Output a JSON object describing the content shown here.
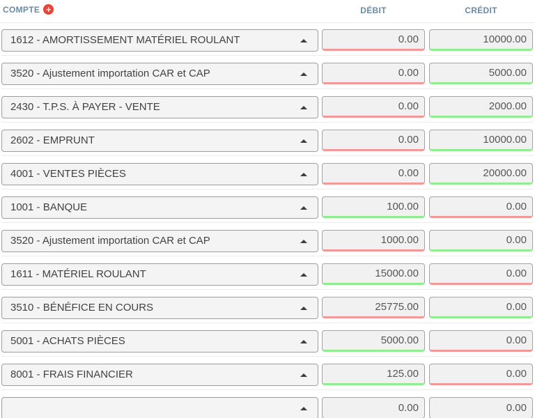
{
  "header": {
    "account_column": "COMPTE",
    "debit_column": "DÉBIT",
    "credit_column": "CRÉDIT",
    "add_icon_glyph": "+"
  },
  "icons": {
    "add_account": "plus-circle-icon",
    "dropdown": "chevron-up-icon"
  },
  "colors": {
    "header_text": "#6b8aa3",
    "add_icon_background": "#ea4335",
    "debit_underline_red": "#f19999",
    "credit_underline_green": "#90ee90"
  },
  "rows": [
    {
      "account": "1612 - AMORTISSEMENT MATÉRIEL ROULANT",
      "debit": "0.00",
      "credit": "10000.00",
      "debit_state": "red",
      "credit_state": "green"
    },
    {
      "account": "3520 - Ajustement importation CAR et CAP",
      "debit": "0.00",
      "credit": "5000.00",
      "debit_state": "red",
      "credit_state": "green"
    },
    {
      "account": "2430 - T.P.S. À PAYER - VENTE",
      "debit": "0.00",
      "credit": "2000.00",
      "debit_state": "red",
      "credit_state": "green"
    },
    {
      "account": "2602 - EMPRUNT",
      "debit": "0.00",
      "credit": "10000.00",
      "debit_state": "red",
      "credit_state": "green"
    },
    {
      "account": "4001 - VENTES PIÈCES",
      "debit": "0.00",
      "credit": "20000.00",
      "debit_state": "red",
      "credit_state": "green"
    },
    {
      "account": "1001 - BANQUE",
      "debit": "100.00",
      "credit": "0.00",
      "debit_state": "green",
      "credit_state": "red"
    },
    {
      "account": "3520 - Ajustement importation CAR et CAP",
      "debit": "1000.00",
      "credit": "0.00",
      "debit_state": "red",
      "credit_state": "green"
    },
    {
      "account": "1611 - MATÉRIEL ROULANT",
      "debit": "15000.00",
      "credit": "0.00",
      "debit_state": "green",
      "credit_state": "red"
    },
    {
      "account": "3510 - BÉNÉFICE EN COURS",
      "debit": "25775.00",
      "credit": "0.00",
      "debit_state": "red",
      "credit_state": "green"
    },
    {
      "account": "5001 - ACHATS PIÈCES",
      "debit": "5000.00",
      "credit": "0.00",
      "debit_state": "green",
      "credit_state": "red"
    },
    {
      "account": "8001 - FRAIS FINANCIER",
      "debit": "125.00",
      "credit": "0.00",
      "debit_state": "green",
      "credit_state": "red"
    },
    {
      "account": "",
      "debit": "0.00",
      "credit": "0.00",
      "debit_state": "none",
      "credit_state": "none"
    }
  ]
}
